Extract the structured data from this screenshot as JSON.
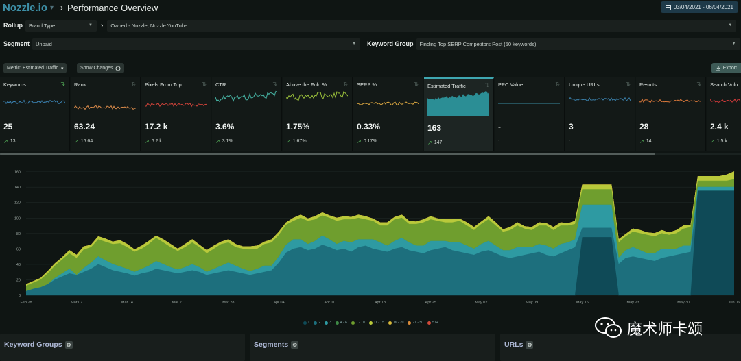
{
  "header": {
    "logo": "Nozzle.io",
    "logo_caret": "▾",
    "crumb_sep": "›",
    "title": "Performance Overview",
    "date_range": "03/04/2021 - 06/04/2021"
  },
  "filters": {
    "rollup_label": "Rollup",
    "rollup_value": "Brand Type",
    "rollup_arrow": "›",
    "rollup_scope": "Owned - Nozzle, Nozzle YouTube",
    "segment_label": "Segment",
    "segment_value": "Unpaid",
    "keyword_group_label": "Keyword Group",
    "keyword_group_value": "Finding Top SERP Competitors Post (50 keywords)"
  },
  "controls": {
    "metric": "Metric: Estimated Traffic",
    "metric_caret": "▾",
    "show_changes": "Show Changes",
    "export": "Export"
  },
  "metrics": [
    {
      "title": "Keywords",
      "value": "25",
      "change": "13",
      "color": "#3d86b8"
    },
    {
      "title": "Rank",
      "value": "63.24",
      "change": "16.64",
      "color": "#d98a4a"
    },
    {
      "title": "Pixels From Top",
      "value": "17.2 k",
      "change": "6.2 k",
      "color": "#d0433a"
    },
    {
      "title": "CTR",
      "value": "3.6%",
      "change": "3.1%",
      "color": "#46b3a3"
    },
    {
      "title": "Above the Fold %",
      "value": "1.75%",
      "change": "1.67%",
      "color": "#9cc23b"
    },
    {
      "title": "SERP %",
      "value": "0.33%",
      "change": "0.17%",
      "color": "#d9a540"
    },
    {
      "title": "Estimated Traffic",
      "value": "163",
      "change": "147",
      "color": "#3fa7b1"
    },
    {
      "title": "PPC Value",
      "value": "-",
      "change": "-",
      "color": "#3a8aa0"
    },
    {
      "title": "Unique URLs",
      "value": "3",
      "change": "-",
      "color": "#3a7ea8"
    },
    {
      "title": "Results",
      "value": "28",
      "change": "14",
      "color": "#d9773a"
    },
    {
      "title": "Search Volu",
      "value": "2.4 k",
      "change": "1.5 k",
      "color": "#d03a3a"
    }
  ],
  "chart_data": {
    "type": "area",
    "stacked": true,
    "x": [
      "Feb 28",
      "Mar 01",
      "Mar 02",
      "Mar 03",
      "Mar 04",
      "Mar 05",
      "Mar 06",
      "Mar 07",
      "Mar 08",
      "Mar 09",
      "Mar 10",
      "Mar 11",
      "Mar 12",
      "Mar 13",
      "Mar 14",
      "Mar 15",
      "Mar 16",
      "Mar 17",
      "Mar 18",
      "Mar 19",
      "Mar 20",
      "Mar 21",
      "Mar 22",
      "Mar 23",
      "Mar 24",
      "Mar 25",
      "Mar 26",
      "Mar 27",
      "Mar 28",
      "Mar 29",
      "Mar 30",
      "Mar 31",
      "Apr 01",
      "Apr 02",
      "Apr 03",
      "Apr 04",
      "Apr 05",
      "Apr 06",
      "Apr 07",
      "Apr 08",
      "Apr 09",
      "Apr 10",
      "Apr 11",
      "Apr 12",
      "Apr 13",
      "Apr 14",
      "Apr 15",
      "Apr 16",
      "Apr 17",
      "Apr 18",
      "Apr 19",
      "Apr 20",
      "Apr 21",
      "Apr 22",
      "Apr 23",
      "Apr 24",
      "Apr 25",
      "Apr 26",
      "Apr 27",
      "Apr 28",
      "Apr 29",
      "Apr 30",
      "May 01",
      "May 02",
      "May 03",
      "May 04",
      "May 05",
      "May 06",
      "May 07",
      "May 08",
      "May 09",
      "May 10",
      "May 11",
      "May 12",
      "May 13",
      "May 14",
      "May 15",
      "May 16",
      "May 17",
      "May 18",
      "May 19",
      "May 20",
      "May 21",
      "May 22",
      "May 23",
      "May 24",
      "May 25",
      "May 26",
      "May 27",
      "May 28",
      "May 29",
      "May 30",
      "May 31",
      "Jun 01",
      "Jun 02",
      "Jun 03",
      "Jun 04",
      "Jun 05",
      "Jun 06"
    ],
    "x_ticks": [
      "Feb 28",
      "Mar 07",
      "Mar 14",
      "Mar 21",
      "Mar 28",
      "Apr 04",
      "Apr 11",
      "Apr 18",
      "Apr 25",
      "May 02",
      "May 09",
      "May 16",
      "May 23",
      "May 30",
      "Jun 06"
    ],
    "y_ticks": [
      0,
      20,
      40,
      60,
      80,
      100,
      120,
      140,
      160
    ],
    "ylim": [
      0,
      165
    ],
    "series": [
      {
        "name": "1",
        "color": "#0f4a57",
        "values": [
          0,
          0,
          0,
          0,
          0,
          0,
          0,
          0,
          0,
          0,
          0,
          0,
          0,
          0,
          0,
          0,
          0,
          0,
          0,
          0,
          0,
          0,
          0,
          0,
          0,
          0,
          0,
          0,
          0,
          0,
          0,
          0,
          0,
          0,
          0,
          0,
          0,
          0,
          0,
          0,
          0,
          0,
          0,
          0,
          0,
          0,
          0,
          0,
          0,
          0,
          0,
          0,
          0,
          0,
          0,
          0,
          0,
          0,
          0,
          0,
          0,
          0,
          0,
          0,
          0,
          0,
          0,
          0,
          0,
          0,
          0,
          0,
          0,
          0,
          0,
          0,
          0,
          75,
          75,
          75,
          75,
          75,
          0,
          0,
          0,
          0,
          0,
          0,
          0,
          0,
          0,
          0,
          0,
          135,
          135,
          135,
          135,
          135,
          135
        ]
      },
      {
        "name": "2",
        "color": "#1d6f7d",
        "values": [
          5,
          8,
          10,
          14,
          20,
          24,
          28,
          26,
          30,
          34,
          40,
          36,
          32,
          30,
          28,
          25,
          28,
          30,
          34,
          32,
          30,
          28,
          30,
          32,
          30,
          26,
          28,
          30,
          32,
          30,
          28,
          26,
          28,
          30,
          32,
          42,
          55,
          60,
          62,
          58,
          60,
          65,
          62,
          58,
          60,
          56,
          62,
          64,
          60,
          58,
          56,
          60,
          62,
          58,
          56,
          54,
          58,
          60,
          62,
          58,
          56,
          54,
          52,
          56,
          58,
          54,
          50,
          48,
          50,
          52,
          54,
          56,
          52,
          50,
          54,
          58,
          62,
          12,
          12,
          12,
          12,
          12,
          40,
          48,
          50,
          48,
          46,
          44,
          48,
          50,
          52,
          54,
          56,
          0,
          0,
          0,
          0,
          0,
          0
        ]
      },
      {
        "name": "3",
        "color": "#2e9aa2",
        "values": [
          0,
          0,
          0,
          0,
          2,
          4,
          6,
          0,
          5,
          8,
          10,
          9,
          8,
          7,
          6,
          5,
          6,
          8,
          10,
          8,
          6,
          5,
          6,
          8,
          6,
          4,
          6,
          8,
          10,
          8,
          6,
          5,
          6,
          8,
          6,
          8,
          10,
          12,
          10,
          8,
          10,
          12,
          10,
          8,
          10,
          12,
          10,
          8,
          12,
          10,
          8,
          10,
          12,
          10,
          8,
          10,
          12,
          10,
          8,
          10,
          12,
          10,
          8,
          10,
          12,
          10,
          8,
          10,
          12,
          10,
          8,
          10,
          12,
          10,
          12,
          10,
          10,
          30,
          30,
          30,
          30,
          30,
          8,
          10,
          12,
          10,
          8,
          10,
          12,
          10,
          8,
          10,
          8,
          5,
          5,
          5,
          5,
          5,
          5
        ]
      },
      {
        "name": "4 - 6",
        "color": "#3f8a46",
        "values": [
          0,
          0,
          0,
          0,
          0,
          0,
          0,
          0,
          0,
          0,
          0,
          0,
          0,
          0,
          0,
          0,
          0,
          0,
          0,
          0,
          0,
          0,
          0,
          0,
          0,
          0,
          0,
          0,
          0,
          0,
          0,
          0,
          0,
          0,
          0,
          0,
          0,
          0,
          0,
          0,
          0,
          0,
          0,
          0,
          0,
          0,
          0,
          0,
          0,
          0,
          0,
          0,
          0,
          0,
          0,
          0,
          0,
          0,
          0,
          0,
          0,
          0,
          0,
          0,
          0,
          0,
          0,
          0,
          0,
          0,
          0,
          0,
          0,
          0,
          0,
          0,
          0,
          0,
          0,
          0,
          0,
          0,
          0,
          0,
          0,
          0,
          0,
          0,
          0,
          0,
          0,
          0,
          0,
          0,
          0,
          0,
          0,
          0,
          0
        ]
      },
      {
        "name": "7 - 10",
        "color": "#6f9e2e",
        "values": [
          7,
          8,
          10,
          14,
          16,
          18,
          20,
          22,
          24,
          20,
          22,
          24,
          26,
          30,
          28,
          26,
          26,
          28,
          30,
          28,
          26,
          24,
          26,
          28,
          26,
          24,
          26,
          28,
          26,
          24,
          26,
          28,
          26,
          28,
          30,
          28,
          26,
          24,
          28,
          30,
          28,
          26,
          28,
          30,
          28,
          30,
          28,
          26,
          24,
          22,
          26,
          28,
          26,
          24,
          28,
          30,
          28,
          26,
          24,
          26,
          28,
          26,
          24,
          26,
          28,
          26,
          24,
          26,
          28,
          24,
          22,
          24,
          26,
          24,
          24,
          22,
          20,
          20,
          20,
          20,
          20,
          20,
          20,
          18,
          20,
          22,
          24,
          22,
          20,
          18,
          20,
          22,
          24,
          8,
          8,
          8,
          8,
          8,
          10
        ]
      },
      {
        "name": "11 - 15",
        "color": "#b9c93b",
        "values": [
          2,
          2,
          2,
          3,
          3,
          3,
          4,
          4,
          4,
          3,
          4,
          4,
          3,
          4,
          4,
          3,
          4,
          4,
          3,
          4,
          4,
          3,
          4,
          4,
          3,
          4,
          4,
          3,
          4,
          4,
          3,
          4,
          4,
          3,
          4,
          4,
          3,
          4,
          4,
          3,
          4,
          4,
          3,
          4,
          4,
          3,
          4,
          4,
          3,
          4,
          4,
          3,
          4,
          4,
          3,
          4,
          4,
          3,
          4,
          4,
          3,
          4,
          4,
          3,
          4,
          4,
          3,
          4,
          4,
          3,
          4,
          4,
          3,
          4,
          4,
          3,
          4,
          6,
          6,
          6,
          6,
          6,
          4,
          3,
          4,
          4,
          3,
          4,
          4,
          3,
          4,
          4,
          3,
          6,
          6,
          6,
          6,
          8,
          10
        ]
      },
      {
        "name": "16 - 20",
        "color": "#d8b93a",
        "values": [
          0,
          0,
          0,
          0,
          0,
          0,
          0,
          0,
          0,
          0,
          0,
          0,
          0,
          0,
          0,
          0,
          0,
          0,
          0,
          0,
          0,
          0,
          0,
          0,
          0,
          0,
          0,
          0,
          0,
          0,
          0,
          0,
          0,
          0,
          0,
          0,
          0,
          0,
          0,
          0,
          0,
          0,
          0,
          0,
          0,
          0,
          0,
          0,
          0,
          0,
          0,
          0,
          0,
          0,
          0,
          0,
          0,
          0,
          0,
          0,
          0,
          0,
          0,
          0,
          0,
          0,
          0,
          0,
          0,
          0,
          0,
          0,
          0,
          0,
          0,
          0,
          0,
          0,
          0,
          0,
          0,
          0,
          0,
          0,
          0,
          0,
          0,
          0,
          0,
          0,
          0,
          0,
          0,
          0,
          0,
          0,
          0,
          0,
          0
        ]
      },
      {
        "name": "21 - 50",
        "color": "#d98b3a",
        "values": [
          0,
          0,
          0,
          0,
          0,
          0,
          0,
          0,
          0,
          0,
          0,
          0,
          0,
          0,
          0,
          0,
          0,
          0,
          0,
          0,
          0,
          0,
          0,
          0,
          0,
          0,
          0,
          0,
          0,
          0,
          0,
          0,
          0,
          0,
          0,
          0,
          0,
          0,
          0,
          0,
          0,
          0,
          0,
          0,
          0,
          0,
          0,
          0,
          0,
          0,
          0,
          0,
          0,
          0,
          0,
          0,
          0,
          0,
          0,
          0,
          0,
          0,
          0,
          0,
          0,
          0,
          0,
          0,
          0,
          0,
          0,
          0,
          0,
          0,
          0,
          0,
          0,
          0,
          0,
          0,
          0,
          0,
          0,
          0,
          0,
          0,
          0,
          0,
          0,
          0,
          0,
          0,
          0,
          0,
          0,
          0,
          0,
          0,
          0
        ]
      },
      {
        "name": "51+",
        "color": "#d34a3a",
        "values": [
          0,
          0,
          0,
          0,
          0,
          0,
          0,
          0,
          0,
          0,
          0,
          0,
          0,
          0,
          0,
          0,
          0,
          0,
          0,
          0,
          0,
          0,
          0,
          0,
          0,
          0,
          0,
          0,
          0,
          0,
          0,
          0,
          0,
          0,
          0,
          0,
          0,
          0,
          0,
          0,
          0,
          0,
          0,
          0,
          0,
          0,
          0,
          0,
          0,
          0,
          0,
          0,
          0,
          0,
          0,
          0,
          0,
          0,
          0,
          0,
          0,
          0,
          0,
          0,
          0,
          0,
          0,
          0,
          0,
          0,
          0,
          0,
          0,
          0,
          0,
          0,
          0,
          0,
          0,
          0,
          0,
          0,
          0,
          0,
          0,
          0,
          0,
          0,
          0,
          0,
          0,
          0,
          0,
          0,
          0,
          0,
          0,
          0,
          0
        ]
      }
    ]
  },
  "panels": {
    "keyword_groups": "Keyword Groups",
    "segments": "Segments",
    "urls": "URLs",
    "gear": "⚙"
  },
  "watermark": {
    "text": "魔术师卡颂"
  }
}
